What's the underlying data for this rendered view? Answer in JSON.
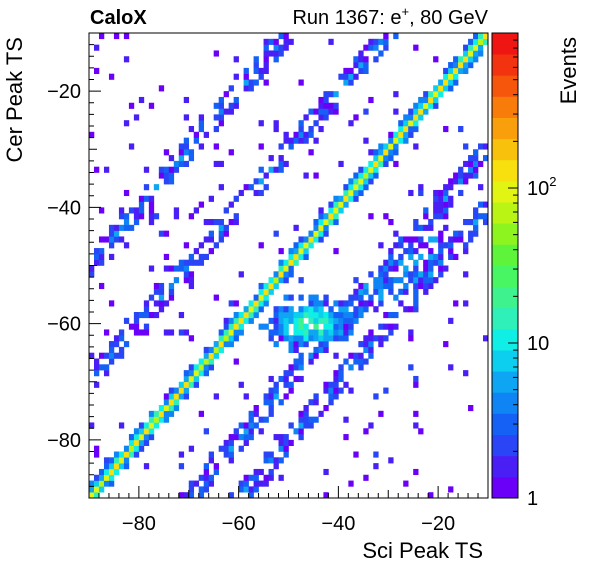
{
  "chart_data": {
    "type": "heatmap",
    "experiment_label": "CaloX",
    "run_label": "Run 1367: e",
    "run_label_sup": "+",
    "run_label_tail": ", 80 GeV",
    "xlabel": "Sci Peak TS",
    "ylabel": "Cer Peak TS",
    "zlabel": "Events",
    "xlim": [
      -90,
      -10
    ],
    "ylim": [
      -90,
      -10
    ],
    "zlim": [
      1,
      1000
    ],
    "z_log_scale": true,
    "x_ticks": [
      -80,
      -60,
      -40,
      -20
    ],
    "y_ticks": [
      -80,
      -60,
      -40,
      -20
    ],
    "x_tick_labels": [
      "−80",
      "−60",
      "−40",
      "−20"
    ],
    "y_tick_labels": [
      "−80",
      "−60",
      "−40",
      "−20"
    ],
    "z_tick_labels": [
      {
        "value": 1,
        "base": "1",
        "exp": ""
      },
      {
        "value": 10,
        "base": "10",
        "exp": ""
      },
      {
        "value": 100,
        "base": "10",
        "exp": "2"
      }
    ],
    "bin_width": 1,
    "features": [
      {
        "name": "main-diagonal",
        "description_values": "y = x",
        "peak_events": 150
      },
      {
        "name": "cluster",
        "center": [
          -46,
          -60
        ],
        "peak_events": 15
      },
      {
        "name": "side-bands",
        "offsets": [
          -30,
          -20,
          20,
          40
        ],
        "typical_events": 2
      }
    ],
    "palette": [
      "#6a00f7",
      "#4a1ff5",
      "#2a45f5",
      "#1561f5",
      "#0f84f5",
      "#0ea6f2",
      "#0ccfef",
      "#10efe6",
      "#2ef0b8",
      "#3ef38e",
      "#48f563",
      "#5ef43c",
      "#8ef41f",
      "#b9f415",
      "#e2f412",
      "#f8e00e",
      "#f8c10c",
      "#f89f0b",
      "#f77c0a",
      "#f5560c",
      "#f3320f",
      "#ef1512"
    ]
  }
}
